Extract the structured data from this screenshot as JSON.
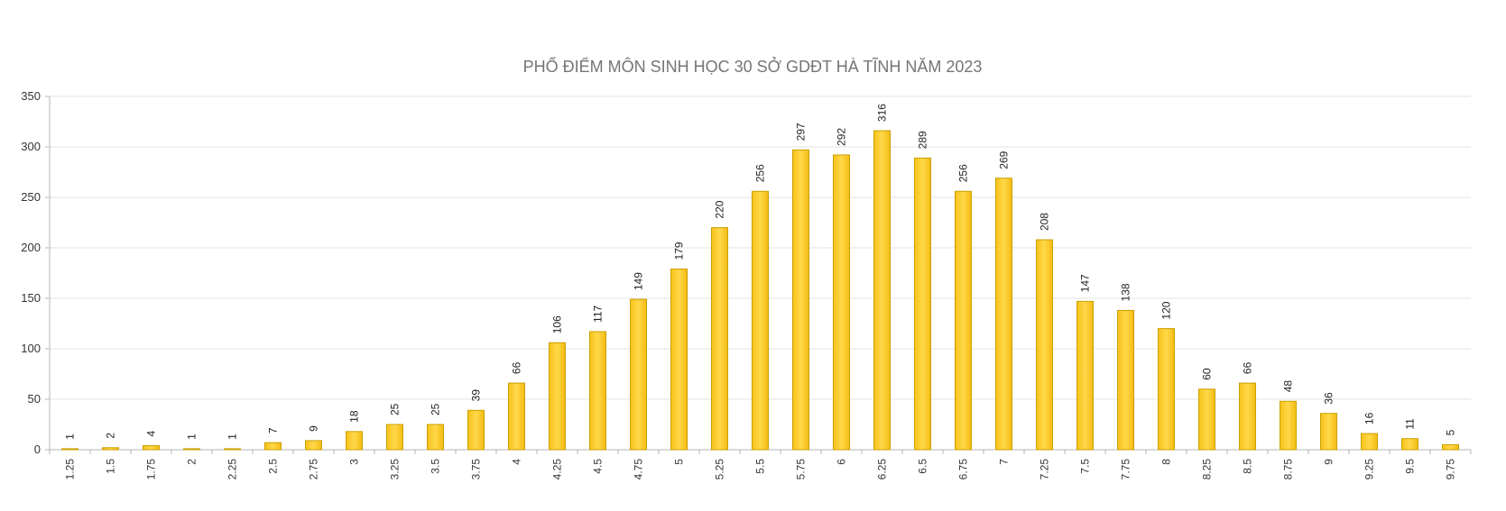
{
  "chart_data": {
    "type": "bar",
    "title": "PHỔ ĐIỂM MÔN SINH HỌC 30 SỞ GDĐT HÀ TĨNH NĂM 2023",
    "xlabel": "",
    "ylabel": "",
    "ylim": [
      0,
      350
    ],
    "yticks": [
      0,
      50,
      100,
      150,
      200,
      250,
      300,
      350
    ],
    "grid": true,
    "legend": "none",
    "bar_color": "#f9c623",
    "bar_border_color": "#c9a000",
    "categories": [
      "1.25",
      "1.5",
      "1.75",
      "2",
      "2.25",
      "2.5",
      "2.75",
      "3",
      "3.25",
      "3.5",
      "3.75",
      "4",
      "4.25",
      "4.5",
      "4.75",
      "5",
      "5.25",
      "5.5",
      "5.75",
      "6",
      "6.25",
      "6.5",
      "6.75",
      "7",
      "7.25",
      "7.5",
      "7.75",
      "8",
      "8.25",
      "8.5",
      "8.75",
      "9",
      "9.25",
      "9.5",
      "9.75"
    ],
    "values": [
      1,
      2,
      4,
      1,
      1,
      7,
      9,
      18,
      25,
      25,
      39,
      66,
      106,
      117,
      149,
      179,
      220,
      256,
      297,
      292,
      316,
      289,
      256,
      269,
      208,
      147,
      138,
      120,
      60,
      66,
      48,
      36,
      16,
      11,
      5
    ]
  }
}
